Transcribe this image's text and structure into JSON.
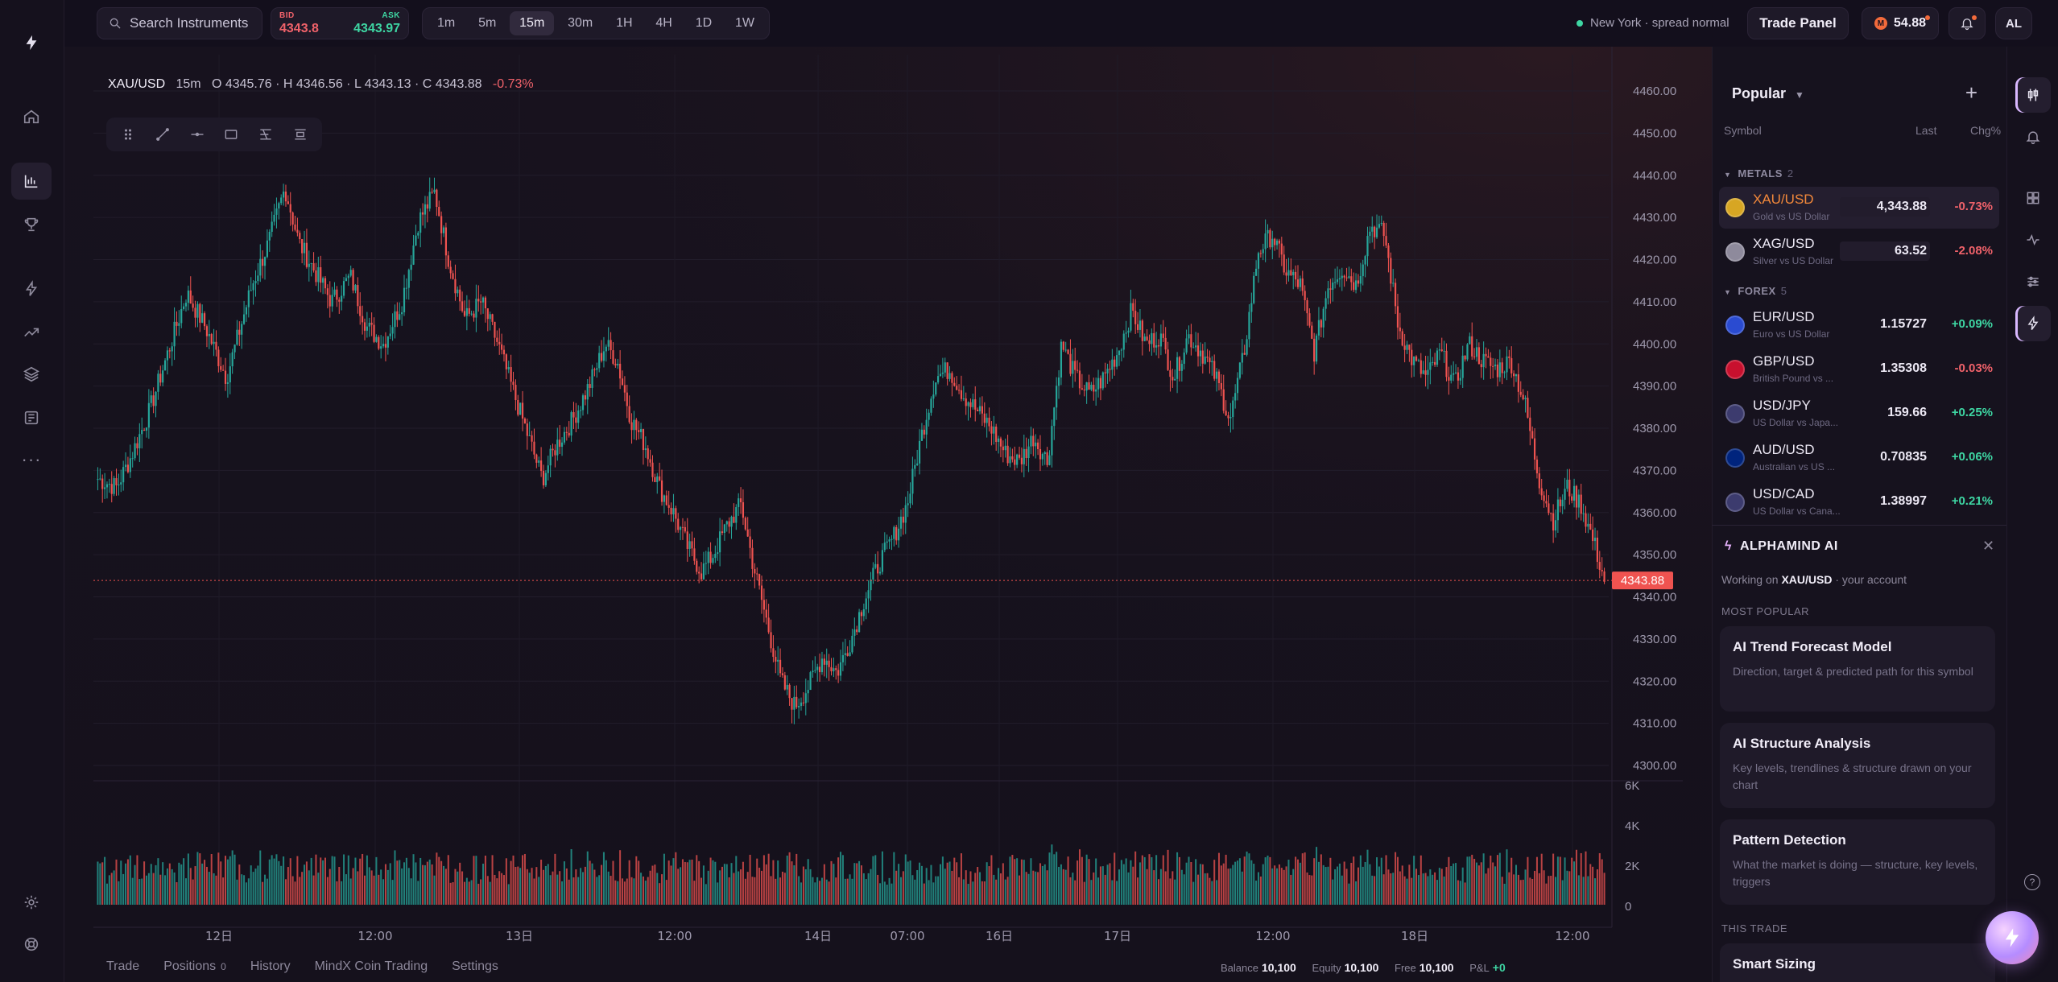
{
  "topbar": {
    "search_placeholder": "Search Instruments",
    "bid_label": "BID",
    "bid_value": "4343.8",
    "ask_label": "ASK",
    "ask_value": "4343.97",
    "timeframes": [
      "1m",
      "5m",
      "15m",
      "30m",
      "1H",
      "4H",
      "1D",
      "1W"
    ],
    "active_timeframe": "15m",
    "session_text": "New York · spread normal",
    "trade_panel_label": "Trade Panel",
    "coins_value": "54.88",
    "avatar_initials": "AL"
  },
  "chart_header": {
    "symbol": "XAU/USD",
    "timeframe": "15m",
    "ohlc": "O 4345.76 · H 4346.56 · L 4343.13 · C 4343.88",
    "change": "-0.73%"
  },
  "chart_data": {
    "type": "candlestick",
    "symbol": "XAU/USD",
    "price_axis_ticks": [
      "4460.00",
      "4450.00",
      "4440.00",
      "4430.00",
      "4420.00",
      "4410.00",
      "4400.00",
      "4390.00",
      "4380.00",
      "4370.00",
      "4360.00",
      "4350.00",
      "4340.00",
      "4330.00",
      "4320.00",
      "4310.00",
      "4300.00"
    ],
    "y_range": [
      4297,
      4463
    ],
    "current_price": "4343.88",
    "volume_axis_ticks": [
      "6K",
      "4K",
      "2K",
      "0"
    ],
    "volume_range": [
      0,
      6000
    ],
    "x_tick_labels": [
      "12日",
      "12:00",
      "13日",
      "12:00",
      "14日",
      "07:00",
      "16日",
      "17日",
      "12:00",
      "18日",
      "12:00"
    ],
    "price_path": [
      [
        0,
        4368
      ],
      [
        8,
        4366
      ],
      [
        14,
        4373
      ],
      [
        22,
        4384
      ],
      [
        30,
        4398
      ],
      [
        38,
        4412
      ],
      [
        46,
        4404
      ],
      [
        55,
        4392
      ],
      [
        60,
        4402
      ],
      [
        66,
        4414
      ],
      [
        73,
        4424
      ],
      [
        80,
        4437
      ],
      [
        86,
        4424
      ],
      [
        92,
        4418
      ],
      [
        100,
        4410
      ],
      [
        108,
        4416
      ],
      [
        115,
        4404
      ],
      [
        122,
        4400
      ],
      [
        130,
        4410
      ],
      [
        137,
        4429
      ],
      [
        144,
        4436
      ],
      [
        150,
        4420
      ],
      [
        157,
        4406
      ],
      [
        164,
        4410
      ],
      [
        171,
        4400
      ],
      [
        178,
        4388
      ],
      [
        184,
        4378
      ],
      [
        190,
        4368
      ],
      [
        196,
        4376
      ],
      [
        203,
        4382
      ],
      [
        210,
        4390
      ],
      [
        217,
        4400
      ],
      [
        222,
        4396
      ],
      [
        228,
        4382
      ],
      [
        234,
        4376
      ],
      [
        240,
        4366
      ],
      [
        246,
        4360
      ],
      [
        252,
        4352
      ],
      [
        258,
        4346
      ],
      [
        263,
        4350
      ],
      [
        269,
        4357
      ],
      [
        275,
        4362
      ],
      [
        280,
        4348
      ],
      [
        286,
        4334
      ],
      [
        292,
        4320
      ],
      [
        298,
        4314
      ],
      [
        304,
        4319
      ],
      [
        310,
        4326
      ],
      [
        316,
        4322
      ],
      [
        322,
        4330
      ],
      [
        328,
        4340
      ],
      [
        334,
        4348
      ],
      [
        340,
        4354
      ],
      [
        346,
        4362
      ],
      [
        352,
        4378
      ],
      [
        358,
        4392
      ],
      [
        364,
        4394
      ],
      [
        370,
        4388
      ],
      [
        376,
        4384
      ],
      [
        382,
        4380
      ],
      [
        388,
        4374
      ],
      [
        394,
        4372
      ],
      [
        400,
        4378
      ],
      [
        406,
        4372
      ],
      [
        412,
        4400
      ],
      [
        418,
        4392
      ],
      [
        424,
        4388
      ],
      [
        430,
        4392
      ],
      [
        436,
        4398
      ],
      [
        442,
        4408
      ],
      [
        448,
        4400
      ],
      [
        454,
        4402
      ],
      [
        460,
        4392
      ],
      [
        466,
        4402
      ],
      [
        472,
        4398
      ],
      [
        478,
        4392
      ],
      [
        484,
        4382
      ],
      [
        490,
        4398
      ],
      [
        496,
        4422
      ],
      [
        502,
        4426
      ],
      [
        508,
        4417
      ],
      [
        514,
        4414
      ],
      [
        520,
        4398
      ],
      [
        526,
        4414
      ],
      [
        532,
        4418
      ],
      [
        538,
        4414
      ],
      [
        544,
        4428
      ],
      [
        550,
        4426
      ],
      [
        556,
        4404
      ],
      [
        562,
        4396
      ],
      [
        568,
        4392
      ],
      [
        574,
        4398
      ],
      [
        580,
        4390
      ],
      [
        586,
        4400
      ],
      [
        592,
        4396
      ],
      [
        598,
        4394
      ],
      [
        604,
        4396
      ],
      [
        610,
        4386
      ],
      [
        616,
        4368
      ],
      [
        622,
        4358
      ],
      [
        628,
        4366
      ],
      [
        634,
        4362
      ],
      [
        640,
        4352
      ],
      [
        644,
        4344
      ]
    ],
    "total_candles": 650
  },
  "draw_tools": [
    "drag-handle-icon",
    "trend-line-icon",
    "horizontal-line-icon",
    "rectangle-icon",
    "fib-icon",
    "measure-icon"
  ],
  "bottom_tabs": [
    {
      "label": "Trade",
      "count": ""
    },
    {
      "label": "Positions",
      "count": "0"
    },
    {
      "label": "History",
      "count": ""
    },
    {
      "label": "MindX Coin Trading",
      "count": ""
    },
    {
      "label": "Settings",
      "count": ""
    }
  ],
  "account": {
    "balance_label": "Balance",
    "balance": "10,100",
    "equity_label": "Equity",
    "equity": "10,100",
    "free_label": "Free",
    "free": "10,100",
    "pnl_label": "P&L",
    "pnl": "+0"
  },
  "watchlist": {
    "title": "Popular",
    "cols": {
      "symbol": "Symbol",
      "last": "Last",
      "chg": "Chg%"
    },
    "groups": [
      {
        "name": "METALS",
        "count": "2",
        "items": [
          {
            "sym": "XAU/USD",
            "desc": "Gold vs US Dollar",
            "last": "4,343.88",
            "chg": "-0.73%",
            "dir": "neg",
            "active": true,
            "flag": "#d7a623"
          },
          {
            "sym": "XAG/USD",
            "desc": "Silver vs US Dollar",
            "last": "63.52",
            "chg": "-2.08%",
            "dir": "neg",
            "active": false,
            "flag": "#8e8a9c"
          }
        ]
      },
      {
        "name": "FOREX",
        "count": "5",
        "items": [
          {
            "sym": "EUR/USD",
            "desc": "Euro vs US Dollar",
            "last": "1.15727",
            "chg": "+0.09%",
            "dir": "pos",
            "flag": "#2a4bd1"
          },
          {
            "sym": "GBP/USD",
            "desc": "British Pound vs ...",
            "last": "1.35308",
            "chg": "-0.03%",
            "dir": "neg",
            "flag": "#c8102e"
          },
          {
            "sym": "USD/JPY",
            "desc": "US Dollar vs Japa...",
            "last": "159.66",
            "chg": "+0.25%",
            "dir": "pos",
            "flag": "#3c3b6e"
          },
          {
            "sym": "AUD/USD",
            "desc": "Australian vs US ...",
            "last": "0.70835",
            "chg": "+0.06%",
            "dir": "pos",
            "flag": "#00247d"
          },
          {
            "sym": "USD/CAD",
            "desc": "US Dollar vs Cana...",
            "last": "1.38997",
            "chg": "+0.21%",
            "dir": "pos",
            "flag": "#3c3b6e"
          }
        ]
      }
    ]
  },
  "ai": {
    "title": "ALPHAMIND AI",
    "working_prefix": "Working on",
    "working_symbol": "XAU/USD",
    "working_suffix": "· your account",
    "most_popular_label": "MOST POPULAR",
    "cards": [
      {
        "title": "AI Trend Forecast Model",
        "desc": "Direction, target & predicted path for this symbol"
      },
      {
        "title": "AI Structure Analysis",
        "desc": "Key levels, trendlines & structure drawn on your chart"
      },
      {
        "title": "Pattern Detection",
        "desc": "What the market is doing — structure, key levels, triggers"
      }
    ],
    "this_trade_label": "THIS TRADE",
    "this_trade_card": "Smart Sizing"
  },
  "colors": {
    "up": "#26a69a",
    "down": "#ef5350",
    "accent": "#f2883a",
    "price_tag": "#ef5350"
  }
}
